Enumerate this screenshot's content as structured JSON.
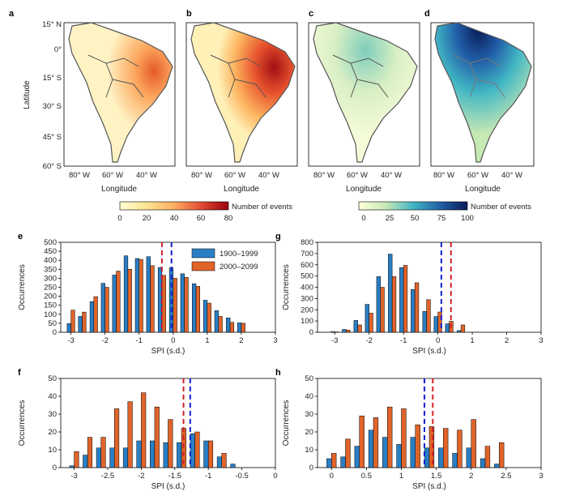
{
  "maps": {
    "panels": [
      "a",
      "b",
      "c",
      "d"
    ],
    "lat_ticks": [
      "15° N",
      "0°",
      "15° S",
      "30° S",
      "45° S",
      "60° S"
    ],
    "lon_ticks": [
      "80° W",
      "60° W",
      "40° W"
    ],
    "ylabel": "Latitude",
    "xlabel": "Longitude",
    "colorbar_left": {
      "ticks": [
        "0",
        "20",
        "40",
        "60",
        "80"
      ],
      "label": "Number of events"
    },
    "colorbar_right": {
      "ticks": [
        "0",
        "25",
        "50",
        "75",
        "100"
      ],
      "label": "Number of events"
    }
  },
  "colors": {
    "blue": "#2a7fc4",
    "orange": "#e0642a",
    "red_dash": "#d0202a",
    "blue_dash": "#1020d0"
  },
  "legend": [
    "1900–1999",
    "2000–2099"
  ],
  "chart_data": [
    {
      "panel": "e",
      "type": "bar",
      "xlabel": "SPI (s.d.)",
      "ylabel": "Occurrences",
      "xlim": [
        -3.3,
        3
      ],
      "ylim": [
        0,
        500
      ],
      "xticks": [
        -3,
        -2,
        -1,
        0,
        1,
        2,
        3
      ],
      "yticks": [
        0,
        50,
        100,
        150,
        200,
        250,
        300,
        350,
        400,
        450,
        500
      ],
      "x": [
        -3,
        -2.67,
        -2.33,
        -2,
        -1.67,
        -1.33,
        -1,
        -0.67,
        -0.33,
        0,
        0.33,
        0.67,
        1,
        1.33,
        1.67,
        2,
        2.33
      ],
      "series": [
        {
          "name": "1900–1999",
          "values": [
            48,
            88,
            170,
            272,
            318,
            425,
            410,
            420,
            360,
            358,
            325,
            270,
            178,
            120,
            80,
            52,
            0
          ]
        },
        {
          "name": "2000–2099",
          "values": [
            123,
            112,
            198,
            250,
            340,
            350,
            405,
            370,
            316,
            300,
            305,
            255,
            162,
            88,
            55,
            50,
            0
          ]
        }
      ],
      "vlines": [
        {
          "x": -0.33,
          "color": "red"
        },
        {
          "x": -0.05,
          "color": "blue"
        }
      ],
      "legend": true
    },
    {
      "panel": "g",
      "type": "bar",
      "xlabel": "SPI (s.d.)",
      "ylabel": "Occurrences",
      "xlim": [
        -3.5,
        3
      ],
      "ylim": [
        0,
        800
      ],
      "xticks": [
        -3,
        -2,
        -1,
        0,
        1,
        2,
        3
      ],
      "yticks": [
        0,
        100,
        200,
        300,
        400,
        500,
        600,
        700,
        800
      ],
      "x": [
        -3,
        -2.67,
        -2.33,
        -2,
        -1.67,
        -1.33,
        -1,
        -0.67,
        -0.33,
        0,
        0.33,
        0.67,
        1,
        1.33,
        1.67,
        2,
        2.33
      ],
      "series": [
        {
          "name": "1900–1999",
          "values": [
            5,
            25,
            105,
            248,
            495,
            695,
            575,
            380,
            185,
            140,
            75,
            15,
            0,
            0,
            0,
            0,
            0
          ]
        },
        {
          "name": "2000–2099",
          "values": [
            3,
            20,
            65,
            170,
            400,
            495,
            595,
            440,
            290,
            180,
            98,
            65,
            0,
            0,
            0,
            0,
            0
          ]
        }
      ],
      "vlines": [
        {
          "x": 0.1,
          "color": "blue"
        },
        {
          "x": 0.38,
          "color": "red"
        }
      ],
      "legend": false
    },
    {
      "panel": "f",
      "type": "bar",
      "xlabel": "SPI (s.d.)",
      "ylabel": "Occurrences",
      "xlim": [
        -3.2,
        0
      ],
      "ylim": [
        0,
        50
      ],
      "xticks": [
        -3.0,
        -2.5,
        -2.0,
        -1.5,
        -1.0,
        -0.5,
        0
      ],
      "yticks": [
        0,
        10,
        20,
        30,
        40,
        50
      ],
      "x": [
        -3.0,
        -2.8,
        -2.6,
        -2.4,
        -2.2,
        -2.0,
        -1.8,
        -1.6,
        -1.4,
        -1.2,
        -1.0,
        -0.8,
        -0.6,
        -0.4
      ],
      "series": [
        {
          "name": "1900–1999",
          "values": [
            1,
            7,
            11,
            11,
            11,
            15,
            15,
            14,
            14,
            19,
            15,
            6,
            2,
            0
          ]
        },
        {
          "name": "2000–2099",
          "values": [
            9,
            17,
            17,
            33,
            37,
            42,
            34,
            27,
            22,
            20,
            15,
            8,
            0,
            0
          ]
        }
      ],
      "vlines": [
        {
          "x": -1.37,
          "color": "red"
        },
        {
          "x": -1.27,
          "color": "blue"
        }
      ],
      "legend": false
    },
    {
      "panel": "h",
      "type": "bar",
      "xlabel": "SPI (s.d.)",
      "ylabel": "Occurrences",
      "xlim": [
        -0.2,
        3.0
      ],
      "ylim": [
        0,
        50
      ],
      "xticks": [
        0,
        0.5,
        1.0,
        1.5,
        2.0,
        2.5,
        3.0
      ],
      "yticks": [
        0,
        10,
        20,
        30,
        40,
        50
      ],
      "x": [
        0,
        0.2,
        0.4,
        0.6,
        0.8,
        1.0,
        1.2,
        1.4,
        1.6,
        1.8,
        2.0,
        2.2,
        2.4,
        2.6
      ],
      "series": [
        {
          "name": "1900–1999",
          "values": [
            5,
            6,
            12,
            21,
            17,
            13,
            17,
            11,
            11,
            8,
            11,
            5,
            2,
            0
          ]
        },
        {
          "name": "2000–2099",
          "values": [
            8,
            16,
            29,
            28,
            34,
            33,
            24,
            23,
            22,
            21,
            27,
            12,
            14,
            0
          ]
        }
      ],
      "vlines": [
        {
          "x": 1.33,
          "color": "blue"
        },
        {
          "x": 1.45,
          "color": "red"
        }
      ],
      "legend": false
    }
  ]
}
